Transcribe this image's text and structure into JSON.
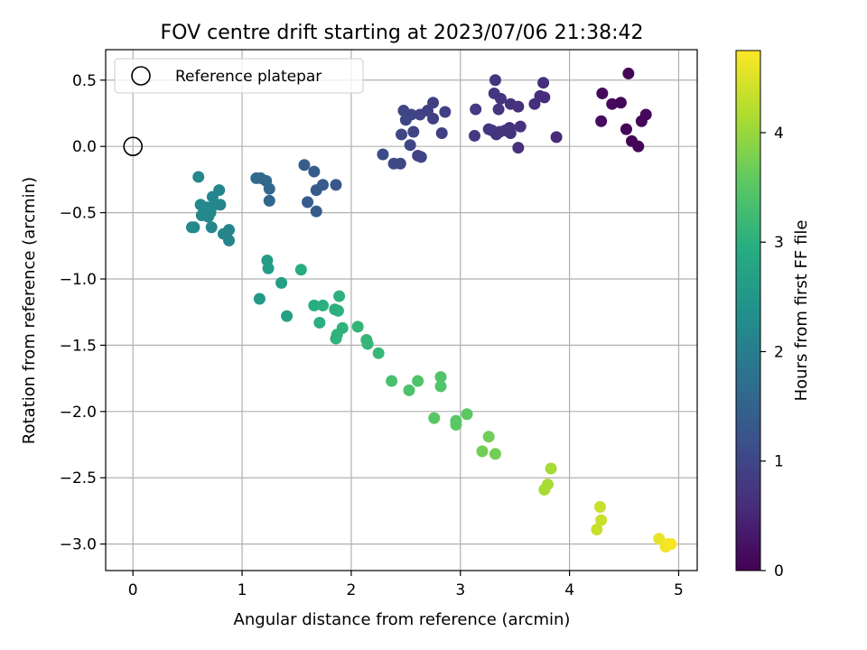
{
  "chart_data": {
    "type": "scatter",
    "title": "FOV centre drift starting at 2023/07/06 21:38:42",
    "xlabel": "Angular distance from reference (arcmin)",
    "ylabel": "Rotation from reference (arcmin)",
    "xlim": [
      -0.25,
      5.17
    ],
    "ylim": [
      -3.2,
      0.73
    ],
    "xticks": [
      "0",
      "1",
      "2",
      "3",
      "4",
      "5"
    ],
    "xtick_values": [
      0,
      1,
      2,
      3,
      4,
      5
    ],
    "yticks": [
      "0.5",
      "0.0",
      "−0.5",
      "−1.0",
      "−1.5",
      "−2.0",
      "−2.5",
      "−3.0"
    ],
    "ytick_values": [
      0.5,
      0.0,
      -0.5,
      -1.0,
      -1.5,
      -2.0,
      -2.5,
      -3.0
    ],
    "grid": true,
    "legend": {
      "placement": "top-left",
      "entries": [
        {
          "label": "Reference platepar",
          "marker": "open-circle"
        }
      ]
    },
    "reference_point": {
      "x": 0,
      "y": 0
    },
    "colorbar": {
      "label": "Hours from first FF file",
      "range": [
        0,
        4.75
      ],
      "ticks": [
        "0",
        "1",
        "2",
        "3",
        "4"
      ],
      "tick_values": [
        0,
        1,
        2,
        3,
        4
      ],
      "colormap": "viridis"
    },
    "points": [
      {
        "x": 4.54,
        "y": 0.55,
        "t": 0.05
      },
      {
        "x": 4.3,
        "y": 0.4,
        "t": 0.1
      },
      {
        "x": 4.39,
        "y": 0.32,
        "t": 0.12
      },
      {
        "x": 4.47,
        "y": 0.33,
        "t": 0.08
      },
      {
        "x": 4.7,
        "y": 0.24,
        "t": 0.1
      },
      {
        "x": 4.66,
        "y": 0.19,
        "t": 0.08
      },
      {
        "x": 4.29,
        "y": 0.19,
        "t": 0.15
      },
      {
        "x": 4.52,
        "y": 0.13,
        "t": 0.06
      },
      {
        "x": 4.57,
        "y": 0.04,
        "t": 0.05
      },
      {
        "x": 4.63,
        "y": 0.0,
        "t": 0.04
      },
      {
        "x": 3.32,
        "y": 0.5,
        "t": 0.7
      },
      {
        "x": 3.76,
        "y": 0.48,
        "t": 0.6
      },
      {
        "x": 3.31,
        "y": 0.4,
        "t": 0.75
      },
      {
        "x": 3.37,
        "y": 0.36,
        "t": 0.72
      },
      {
        "x": 3.73,
        "y": 0.38,
        "t": 0.6
      },
      {
        "x": 3.77,
        "y": 0.37,
        "t": 0.6
      },
      {
        "x": 3.68,
        "y": 0.32,
        "t": 0.62
      },
      {
        "x": 3.46,
        "y": 0.32,
        "t": 0.68
      },
      {
        "x": 3.53,
        "y": 0.3,
        "t": 0.66
      },
      {
        "x": 3.14,
        "y": 0.28,
        "t": 0.8
      },
      {
        "x": 3.35,
        "y": 0.28,
        "t": 0.74
      },
      {
        "x": 3.55,
        "y": 0.15,
        "t": 0.65
      },
      {
        "x": 3.45,
        "y": 0.14,
        "t": 0.68
      },
      {
        "x": 3.26,
        "y": 0.13,
        "t": 0.75
      },
      {
        "x": 3.29,
        "y": 0.12,
        "t": 0.74
      },
      {
        "x": 3.36,
        "y": 0.11,
        "t": 0.72
      },
      {
        "x": 3.41,
        "y": 0.12,
        "t": 0.7
      },
      {
        "x": 3.33,
        "y": 0.09,
        "t": 0.73
      },
      {
        "x": 3.46,
        "y": 0.1,
        "t": 0.68
      },
      {
        "x": 3.13,
        "y": 0.08,
        "t": 0.8
      },
      {
        "x": 3.88,
        "y": 0.07,
        "t": 0.55
      },
      {
        "x": 3.53,
        "y": -0.01,
        "t": 0.66
      },
      {
        "x": 2.75,
        "y": 0.33,
        "t": 0.9
      },
      {
        "x": 2.48,
        "y": 0.27,
        "t": 1.0
      },
      {
        "x": 2.55,
        "y": 0.24,
        "t": 1.0
      },
      {
        "x": 2.63,
        "y": 0.24,
        "t": 0.95
      },
      {
        "x": 2.7,
        "y": 0.27,
        "t": 0.92
      },
      {
        "x": 2.86,
        "y": 0.26,
        "t": 0.88
      },
      {
        "x": 2.5,
        "y": 0.2,
        "t": 1.0
      },
      {
        "x": 2.75,
        "y": 0.21,
        "t": 0.9
      },
      {
        "x": 2.57,
        "y": 0.11,
        "t": 0.98
      },
      {
        "x": 2.46,
        "y": 0.09,
        "t": 1.02
      },
      {
        "x": 2.83,
        "y": 0.1,
        "t": 0.88
      },
      {
        "x": 2.54,
        "y": 0.01,
        "t": 1.0
      },
      {
        "x": 2.29,
        "y": -0.06,
        "t": 1.08
      },
      {
        "x": 2.61,
        "y": -0.07,
        "t": 0.96
      },
      {
        "x": 2.64,
        "y": -0.08,
        "t": 0.95
      },
      {
        "x": 2.39,
        "y": -0.13,
        "t": 1.05
      },
      {
        "x": 2.45,
        "y": -0.13,
        "t": 1.03
      },
      {
        "x": 1.57,
        "y": -0.14,
        "t": 1.4
      },
      {
        "x": 1.66,
        "y": -0.19,
        "t": 1.38
      },
      {
        "x": 1.74,
        "y": -0.29,
        "t": 1.35
      },
      {
        "x": 1.86,
        "y": -0.29,
        "t": 1.3
      },
      {
        "x": 1.68,
        "y": -0.33,
        "t": 1.38
      },
      {
        "x": 1.6,
        "y": -0.42,
        "t": 1.4
      },
      {
        "x": 1.68,
        "y": -0.49,
        "t": 1.38
      },
      {
        "x": 1.13,
        "y": -0.24,
        "t": 1.65
      },
      {
        "x": 1.17,
        "y": -0.24,
        "t": 1.63
      },
      {
        "x": 1.22,
        "y": -0.26,
        "t": 1.6
      },
      {
        "x": 1.25,
        "y": -0.32,
        "t": 1.58
      },
      {
        "x": 1.25,
        "y": -0.41,
        "t": 1.58
      },
      {
        "x": 0.6,
        "y": -0.23,
        "t": 2.2
      },
      {
        "x": 0.79,
        "y": -0.33,
        "t": 2.15
      },
      {
        "x": 0.73,
        "y": -0.38,
        "t": 2.18
      },
      {
        "x": 0.62,
        "y": -0.44,
        "t": 2.2
      },
      {
        "x": 0.68,
        "y": -0.46,
        "t": 2.2
      },
      {
        "x": 0.72,
        "y": -0.46,
        "t": 2.18
      },
      {
        "x": 0.8,
        "y": -0.44,
        "t": 2.15
      },
      {
        "x": 0.63,
        "y": -0.52,
        "t": 2.22
      },
      {
        "x": 0.69,
        "y": -0.53,
        "t": 2.2
      },
      {
        "x": 0.71,
        "y": -0.5,
        "t": 2.2
      },
      {
        "x": 0.54,
        "y": -0.61,
        "t": 2.25
      },
      {
        "x": 0.56,
        "y": -0.61,
        "t": 2.25
      },
      {
        "x": 0.72,
        "y": -0.61,
        "t": 2.2
      },
      {
        "x": 0.83,
        "y": -0.66,
        "t": 2.15
      },
      {
        "x": 0.88,
        "y": -0.63,
        "t": 2.12
      },
      {
        "x": 0.88,
        "y": -0.71,
        "t": 2.12
      },
      {
        "x": 1.23,
        "y": -0.86,
        "t": 2.6
      },
      {
        "x": 1.24,
        "y": -0.92,
        "t": 2.6
      },
      {
        "x": 1.36,
        "y": -1.03,
        "t": 2.65
      },
      {
        "x": 1.16,
        "y": -1.15,
        "t": 2.55
      },
      {
        "x": 1.41,
        "y": -1.28,
        "t": 2.7
      },
      {
        "x": 1.54,
        "y": -0.93,
        "t": 2.9
      },
      {
        "x": 1.66,
        "y": -1.2,
        "t": 2.95
      },
      {
        "x": 1.74,
        "y": -1.2,
        "t": 3.0
      },
      {
        "x": 1.85,
        "y": -1.23,
        "t": 3.0
      },
      {
        "x": 1.88,
        "y": -1.24,
        "t": 3.02
      },
      {
        "x": 1.89,
        "y": -1.13,
        "t": 3.02
      },
      {
        "x": 1.71,
        "y": -1.33,
        "t": 3.0
      },
      {
        "x": 1.92,
        "y": -1.37,
        "t": 3.05
      },
      {
        "x": 1.87,
        "y": -1.42,
        "t": 3.05
      },
      {
        "x": 1.86,
        "y": -1.45,
        "t": 3.05
      },
      {
        "x": 2.06,
        "y": -1.36,
        "t": 3.1
      },
      {
        "x": 2.14,
        "y": -1.46,
        "t": 3.12
      },
      {
        "x": 2.15,
        "y": -1.49,
        "t": 3.12
      },
      {
        "x": 2.25,
        "y": -1.56,
        "t": 3.15
      },
      {
        "x": 2.37,
        "y": -1.77,
        "t": 3.35
      },
      {
        "x": 2.53,
        "y": -1.84,
        "t": 3.38
      },
      {
        "x": 2.61,
        "y": -1.77,
        "t": 3.4
      },
      {
        "x": 2.82,
        "y": -1.74,
        "t": 3.42
      },
      {
        "x": 2.82,
        "y": -1.81,
        "t": 3.42
      },
      {
        "x": 2.76,
        "y": -2.05,
        "t": 3.5
      },
      {
        "x": 2.96,
        "y": -2.07,
        "t": 3.52
      },
      {
        "x": 2.96,
        "y": -2.1,
        "t": 3.52
      },
      {
        "x": 3.06,
        "y": -2.02,
        "t": 3.55
      },
      {
        "x": 3.26,
        "y": -2.19,
        "t": 3.7
      },
      {
        "x": 3.2,
        "y": -2.3,
        "t": 3.72
      },
      {
        "x": 3.32,
        "y": -2.32,
        "t": 3.72
      },
      {
        "x": 3.83,
        "y": -2.43,
        "t": 4.1
      },
      {
        "x": 3.8,
        "y": -2.55,
        "t": 4.12
      },
      {
        "x": 3.77,
        "y": -2.59,
        "t": 4.12
      },
      {
        "x": 4.28,
        "y": -2.72,
        "t": 4.35
      },
      {
        "x": 4.29,
        "y": -2.82,
        "t": 4.35
      },
      {
        "x": 4.25,
        "y": -2.89,
        "t": 4.35
      },
      {
        "x": 4.82,
        "y": -2.96,
        "t": 4.6
      },
      {
        "x": 4.88,
        "y": -3.02,
        "t": 4.65
      },
      {
        "x": 4.9,
        "y": -3.0,
        "t": 4.65
      },
      {
        "x": 4.93,
        "y": -3.0,
        "t": 4.7
      }
    ]
  }
}
